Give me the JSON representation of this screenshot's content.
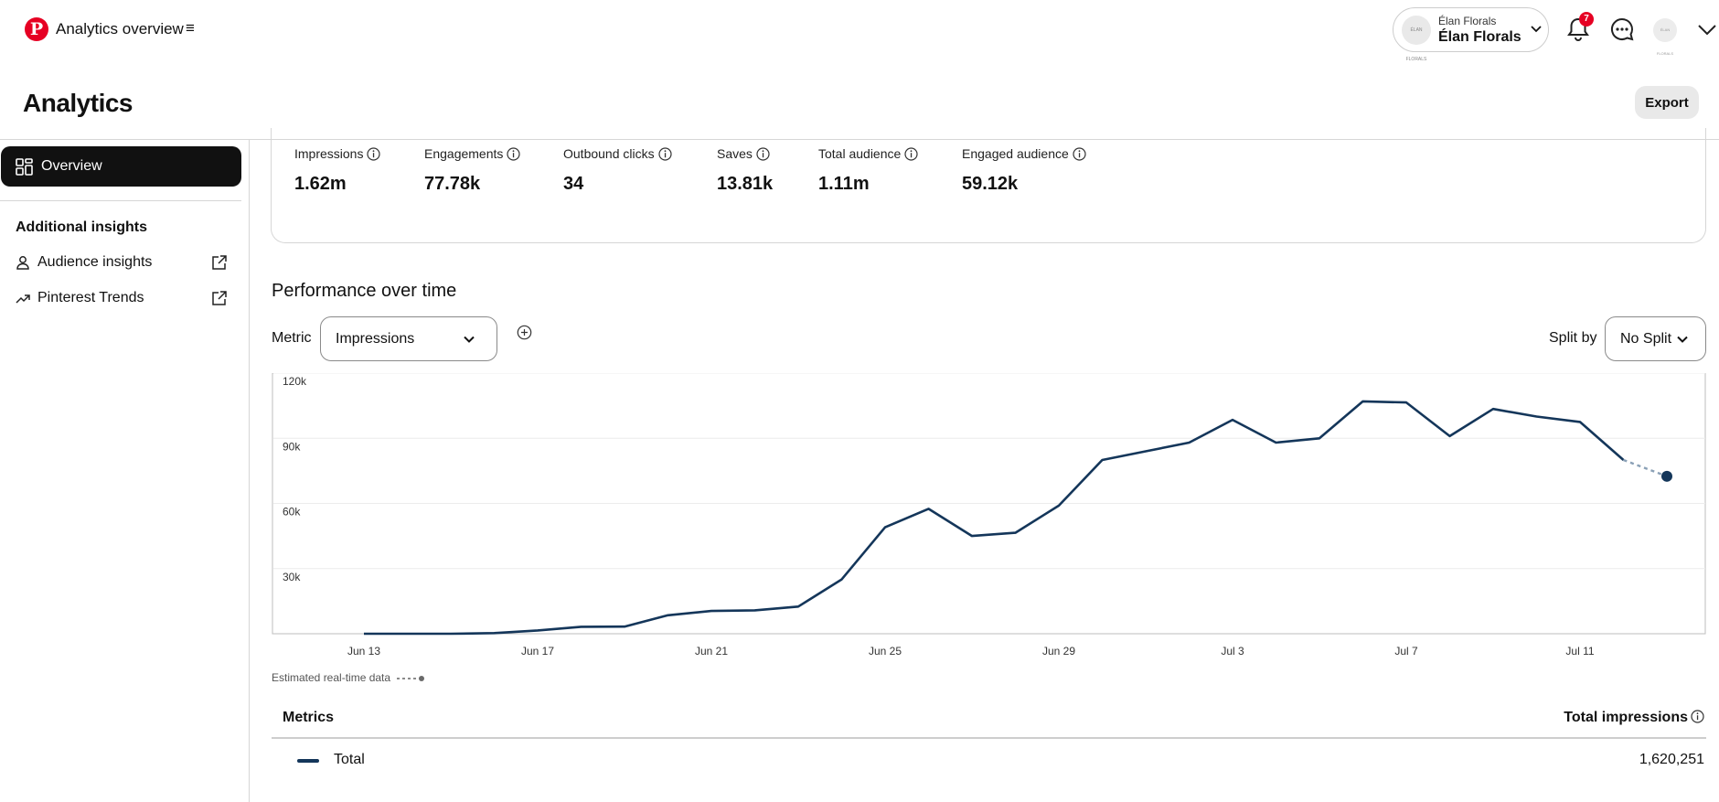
{
  "header": {
    "app_title": "Analytics overview",
    "account_small": "Élan Florals",
    "account_name": "Élan Florals",
    "avatar_text": "ÉLAN FLORALS",
    "notification_count": "7"
  },
  "page": {
    "title": "Analytics",
    "export_label": "Export"
  },
  "sidebar": {
    "overview_label": "Overview",
    "additional_heading": "Additional insights",
    "links": [
      {
        "label": "Audience insights"
      },
      {
        "label": "Pinterest Trends"
      }
    ]
  },
  "stats": [
    {
      "label": "Impressions",
      "value": "1.62m"
    },
    {
      "label": "Engagements",
      "value": "77.78k"
    },
    {
      "label": "Outbound clicks",
      "value": "34"
    },
    {
      "label": "Saves",
      "value": "13.81k"
    },
    {
      "label": "Total audience",
      "value": "1.11m"
    },
    {
      "label": "Engaged audience",
      "value": "59.12k"
    }
  ],
  "performance": {
    "title": "Performance over time",
    "metric_label": "Metric",
    "metric_value": "Impressions",
    "split_label": "Split by",
    "split_value": "No Split",
    "realtime_note": "Estimated real-time data"
  },
  "chart_data": {
    "type": "line",
    "x_labels": [
      "Jun 13",
      "Jun 17",
      "Jun 21",
      "Jun 25",
      "Jun 29",
      "Jul 3",
      "Jul 7",
      "Jul 11"
    ],
    "y_ticks": [
      "120k",
      "90k",
      "60k",
      "30k"
    ],
    "ylim": [
      0,
      120000
    ],
    "grid": true,
    "series": [
      {
        "color": "#14365a",
        "values": [
          0,
          0,
          0,
          300,
          1500,
          3200,
          3300,
          8500,
          10500,
          10800,
          12500,
          25000,
          49000,
          57500,
          45000,
          46500,
          59000,
          80000,
          84000,
          88000,
          98500,
          88000,
          90000,
          107000,
          106500,
          91000,
          103500,
          100000,
          97500,
          80000
        ],
        "estimated_values": [
          80000,
          72500
        ]
      }
    ]
  },
  "metrics_table": {
    "header_left": "Metrics",
    "header_right": "Total impressions",
    "rows": [
      {
        "name": "Total",
        "value": "1,620,251"
      }
    ]
  },
  "colors": {
    "brand": "#e60023",
    "series": "#14365a",
    "nav_active": "#111111"
  }
}
